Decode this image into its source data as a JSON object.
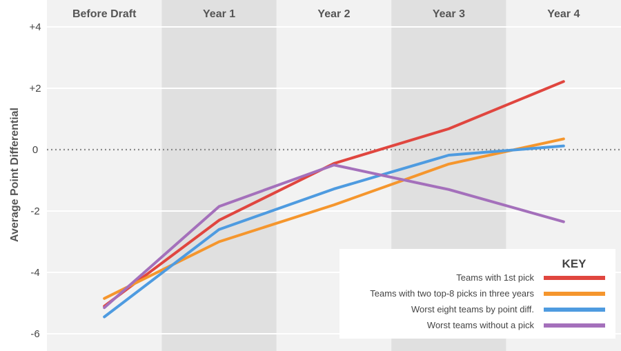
{
  "chart_data": {
    "type": "line",
    "categories": [
      "Before Draft",
      "Year 1",
      "Year 2",
      "Year 3",
      "Year 4"
    ],
    "ylabel": "Average Point Differential",
    "ylim": [
      -6.3,
      4.5
    ],
    "yticks": [
      {
        "value": 4,
        "label": "+4"
      },
      {
        "value": 2,
        "label": "+2"
      },
      {
        "value": 0,
        "label": "0"
      },
      {
        "value": -2,
        "label": "-2"
      },
      {
        "value": -4,
        "label": "-4"
      },
      {
        "value": -6,
        "label": "-6"
      }
    ],
    "zero_line": "dotted",
    "column_shading": [
      "#f2f2f2",
      "#e0e0e0",
      "#f2f2f2",
      "#e0e0e0",
      "#f2f2f2"
    ],
    "legend_title": "KEY",
    "legend_position": "bottom-right",
    "series": [
      {
        "name": "Teams with 1st pick",
        "color": "#e0463f",
        "values": [
          -5.1,
          -2.3,
          -0.45,
          0.68,
          2.22
        ]
      },
      {
        "name": "Teams with two top-8 picks in three years",
        "color": "#f5962d",
        "values": [
          -4.85,
          -3.0,
          -1.8,
          -0.47,
          0.35
        ]
      },
      {
        "name": "Worst eight teams by point diff.",
        "color": "#4e9be0",
        "values": [
          -5.45,
          -2.6,
          -1.28,
          -0.18,
          0.12
        ]
      },
      {
        "name": "Worst teams without a pick",
        "color": "#a470bb",
        "values": [
          -5.15,
          -1.85,
          -0.5,
          -1.3,
          -2.35
        ]
      }
    ]
  }
}
